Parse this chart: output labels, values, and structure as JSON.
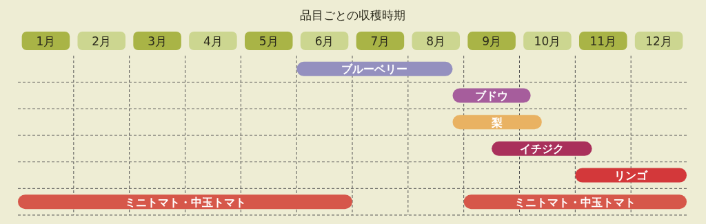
{
  "chart_data": {
    "type": "bar",
    "orientation": "horizontal",
    "title": "品目ごとの収穫時期",
    "categories": [
      "ブルーベリー",
      "ブドウ",
      "梨",
      "イチジク",
      "リンゴ",
      "ミニトマト・中玉トマト"
    ],
    "xlim": [
      0,
      12
    ],
    "xticks": [
      {
        "value": 0.5,
        "label": "1月"
      },
      {
        "value": 1.5,
        "label": "2月"
      },
      {
        "value": 2.5,
        "label": "3月"
      },
      {
        "value": 3.5,
        "label": "4月"
      },
      {
        "value": 4.5,
        "label": "5月"
      },
      {
        "value": 5.5,
        "label": "6月"
      },
      {
        "value": 6.5,
        "label": "7月"
      },
      {
        "value": 7.5,
        "label": "8月"
      },
      {
        "value": 8.5,
        "label": "9月"
      },
      {
        "value": 9.5,
        "label": "10月"
      },
      {
        "value": 10.5,
        "label": "11月"
      },
      {
        "value": 11.5,
        "label": "12月"
      }
    ],
    "grid": true,
    "series": [
      {
        "values": [
          2.8,
          1.4,
          1.6,
          1.8,
          2,
          6
        ],
        "base": [
          5,
          7.8,
          7.8,
          8.5,
          10,
          0
        ],
        "colors": [
          "#9490bf",
          "#a65d9c",
          "#e9b262",
          "#a9305b",
          "#d3383a",
          "#d6574a"
        ]
      },
      {
        "values": [
          null,
          null,
          null,
          null,
          null,
          4
        ],
        "base": [
          null,
          null,
          null,
          null,
          null,
          8
        ],
        "color": "#d6574a"
      }
    ]
  }
}
